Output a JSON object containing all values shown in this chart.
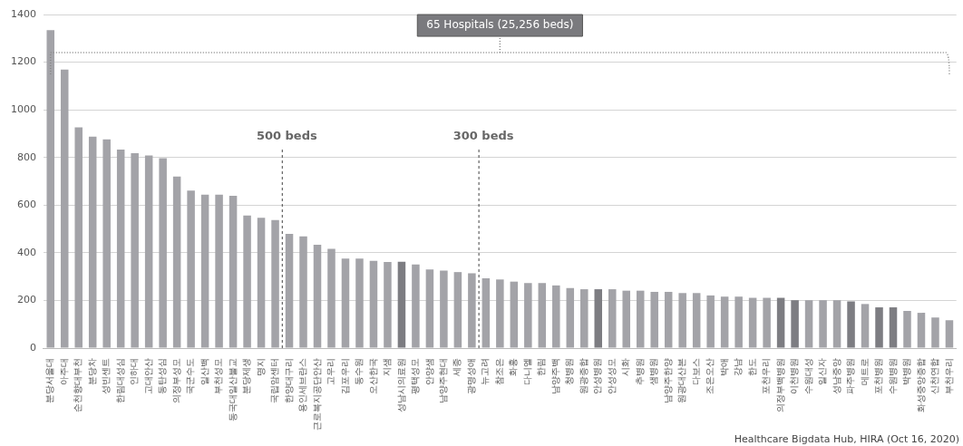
{
  "chart_data": {
    "type": "bar",
    "categories": [
      "분당서울대",
      "아주대",
      "순천향대부천",
      "분당차",
      "성빈센트",
      "한림대성심",
      "인하대",
      "고대안산",
      "동탄성심",
      "의정부성모",
      "국군수도",
      "일산백",
      "부천성모",
      "동국대일산불교",
      "분당제생",
      "명지",
      "국립암센터",
      "한양대구리",
      "용인세브란스",
      "근로복지공단안산",
      "고우리",
      "김포우리",
      "동수원",
      "오산한국",
      "지샘",
      "성남시의료원",
      "평택성모",
      "안양샘",
      "남양주현대",
      "세종",
      "광명성애",
      "뉴고려",
      "참조은",
      "화홍",
      "다니엘",
      "한림",
      "남양주백",
      "청병원",
      "원광종합",
      "안성병원",
      "안성성모",
      "시화",
      "추병원",
      "샘병원",
      "남양주한양",
      "원광대산본",
      "다보스",
      "조은오산",
      "박애",
      "강남",
      "한도",
      "포천우리",
      "의정부백병원",
      "이천병원",
      "수원대성",
      "일신자",
      "성남중앙",
      "파주병원",
      "메트로",
      "포천병원",
      "수원병원",
      "박병원",
      "화성중앙종합",
      "신천연합",
      "부천우리"
    ],
    "values": [
      1334,
      1169,
      926,
      887,
      876,
      833,
      818,
      808,
      797,
      720,
      661,
      644,
      644,
      639,
      556,
      547,
      537,
      479,
      469,
      434,
      417,
      376,
      376,
      366,
      361,
      362,
      351,
      330,
      325,
      319,
      314,
      293,
      288,
      279,
      273,
      273,
      263,
      252,
      247,
      247,
      247,
      241,
      241,
      236,
      236,
      231,
      231,
      221,
      216,
      216,
      211,
      211,
      211,
      201,
      201,
      201,
      201,
      196,
      185,
      171,
      171,
      156,
      148,
      128,
      117
    ],
    "colors": [
      "#a3a3a8",
      "#a3a3a8",
      "#a3a3a8",
      "#a3a3a8",
      "#a3a3a8",
      "#a3a3a8",
      "#a3a3a8",
      "#a3a3a8",
      "#a3a3a8",
      "#a3a3a8",
      "#a3a3a8",
      "#a3a3a8",
      "#a3a3a8",
      "#a3a3a8",
      "#a3a3a8",
      "#a3a3a8",
      "#a3a3a8",
      "#a3a3a8",
      "#a3a3a8",
      "#a3a3a8",
      "#a3a3a8",
      "#a3a3a8",
      "#a3a3a8",
      "#a3a3a8",
      "#a3a3a8",
      "#7d7d82",
      "#a3a3a8",
      "#a3a3a8",
      "#a3a3a8",
      "#a3a3a8",
      "#a3a3a8",
      "#a3a3a8",
      "#a3a3a8",
      "#a3a3a8",
      "#a3a3a8",
      "#a3a3a8",
      "#a3a3a8",
      "#a3a3a8",
      "#a3a3a8",
      "#7d7d82",
      "#a3a3a8",
      "#a3a3a8",
      "#a3a3a8",
      "#a3a3a8",
      "#a3a3a8",
      "#a3a3a8",
      "#a3a3a8",
      "#a3a3a8",
      "#a3a3a8",
      "#a3a3a8",
      "#a3a3a8",
      "#a3a3a8",
      "#7d7d82",
      "#7d7d82",
      "#a3a3a8",
      "#a3a3a8",
      "#a3a3a8",
      "#7d7d82",
      "#a3a3a8",
      "#7d7d82",
      "#7d7d82",
      "#a3a3a8",
      "#a3a3a8",
      "#a3a3a8",
      "#a3a3a8"
    ],
    "ylim": [
      0,
      1400
    ],
    "yticks": [
      0,
      200,
      400,
      600,
      800,
      1000,
      1200,
      1400
    ],
    "grid": "y",
    "legend": false,
    "ref_lines": [
      {
        "axis": "y",
        "value": 1240,
        "label": "65 Hospitals (25,256 beds)",
        "line_style": "dotted",
        "color": "#888888"
      },
      {
        "axis": "x",
        "value": "한양대구리",
        "label": "500 beds",
        "line_style": "dashed"
      },
      {
        "axis": "x",
        "value": "뉴고려",
        "label": "300 beds",
        "line_style": "dashed"
      }
    ],
    "annotations": [
      "Healthcare Bigdata Hub, HIRA (Oct 16, 2020)"
    ]
  }
}
